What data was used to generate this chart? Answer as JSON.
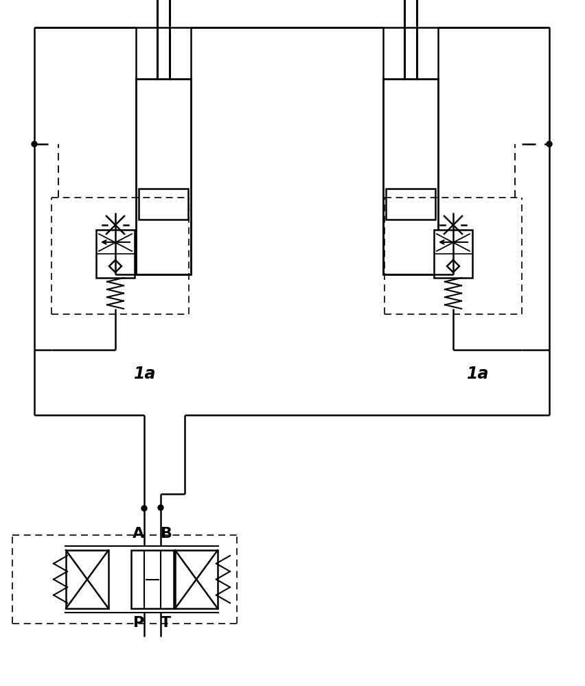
{
  "bg_color": "#ffffff",
  "line_color": "#000000",
  "fig_width": 8.52,
  "fig_height": 10.0,
  "dpi": 100,
  "label_1a": "1a",
  "label_A": "A",
  "label_B": "B",
  "label_P": "P",
  "label_T": "T"
}
